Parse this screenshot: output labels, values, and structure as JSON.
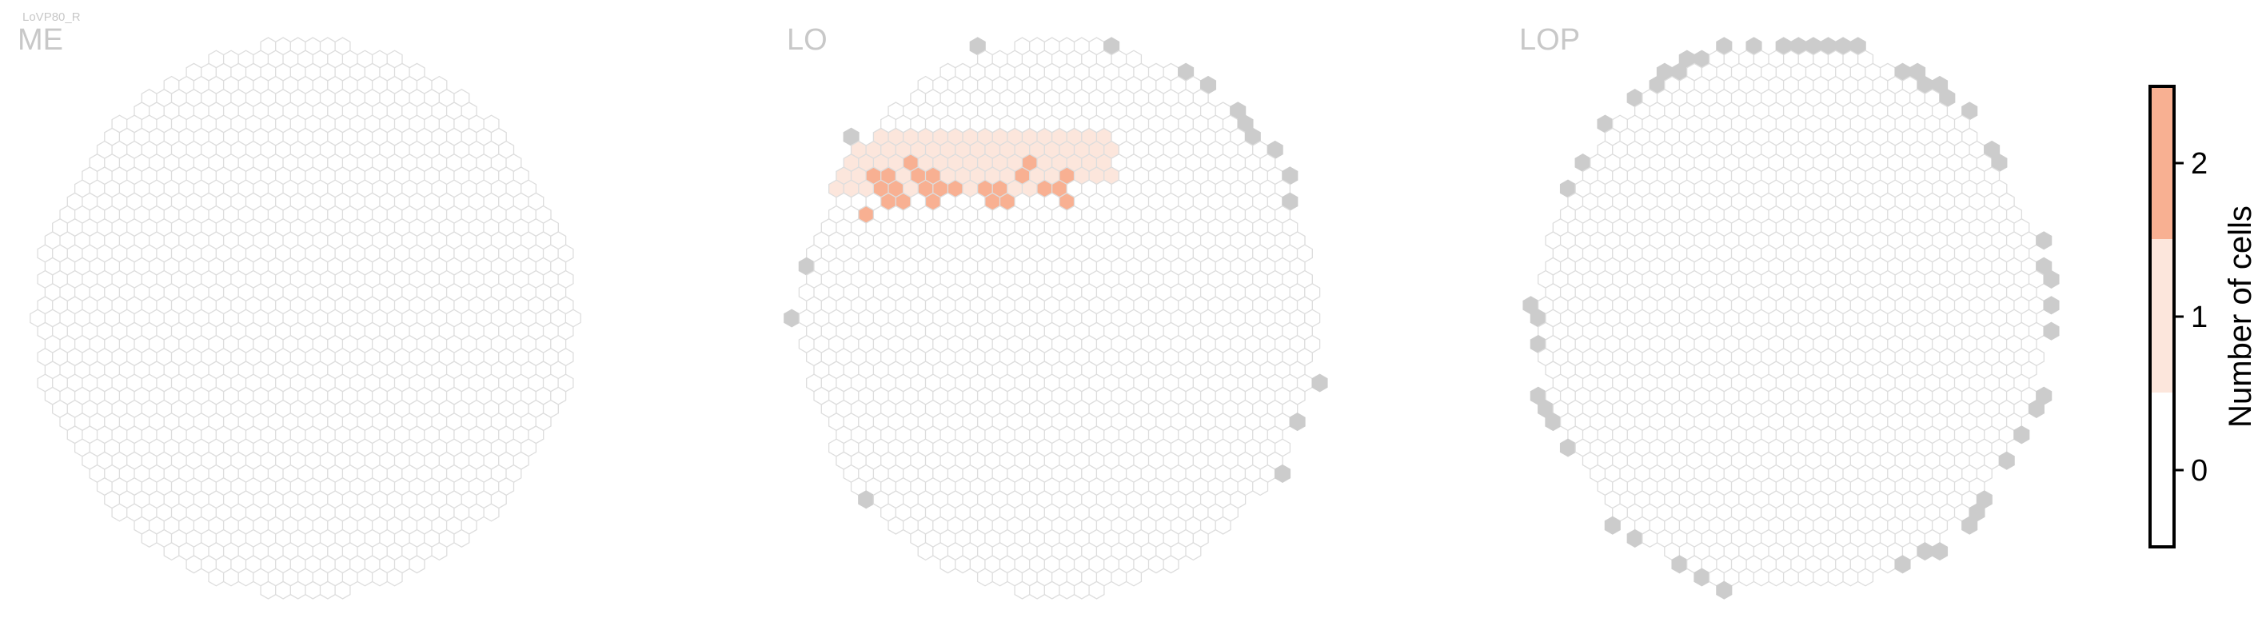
{
  "figure": {
    "cell_type": "LoVP80_R",
    "colorbar": {
      "label": "Number of cells",
      "ticks": [
        "0",
        "1",
        "2"
      ],
      "colors": [
        "#ffffff",
        "#fce6dc",
        "#f8b092"
      ]
    },
    "colors": {
      "hex_outline": "#dddddd",
      "hex_empty_fill": "#ffffff",
      "hex_out_of_map": "#cccccc",
      "panel_title": "#c8c8c8",
      "cell_type_text": "#c8c8c8"
    }
  },
  "chart_data": [
    {
      "type": "heatmap",
      "title": "ME",
      "grid": "hexagonal column map",
      "value_summary": "all columns 0 cells",
      "highlighted_columns": [],
      "out_of_map_columns": 0
    },
    {
      "type": "heatmap",
      "title": "LO",
      "grid": "hexagonal column map",
      "value_summary": "a cluster of columns in the upper-left quadrant contain 1-2 cells; all others 0",
      "columns_with_2_cells": 24,
      "columns_with_1_cell": 70,
      "out_of_map_columns": 17
    },
    {
      "type": "heatmap",
      "title": "LOP",
      "grid": "hexagonal column map",
      "value_summary": "all columns 0 cells",
      "highlighted_columns": [],
      "out_of_map_columns": 52
    }
  ]
}
